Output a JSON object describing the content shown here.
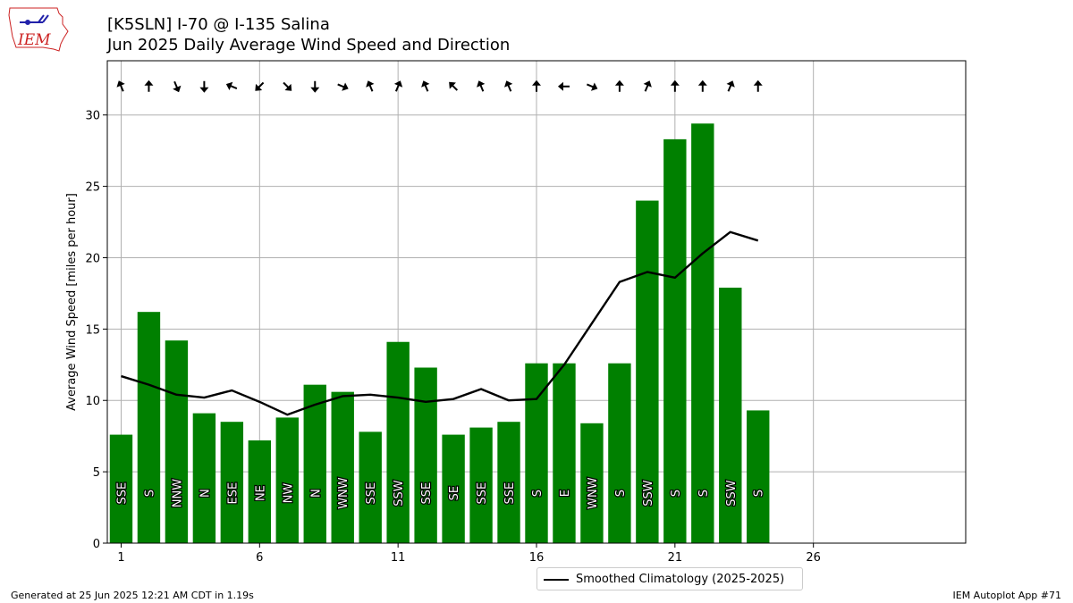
{
  "header": {
    "title": "[K5SLN] I-70 @ I-135 Salina",
    "subtitle": "Jun 2025 Daily Average Wind Speed and Direction"
  },
  "logo": {
    "text": "IEM"
  },
  "footer": {
    "left": "Generated at 25 Jun 2025 12:21 AM CDT in 1.19s",
    "right": "IEM Autoplot App #71"
  },
  "legend": {
    "label": "Smoothed Climatology (2025-2025)",
    "placement": "lower-center, below axes"
  },
  "colors": {
    "bar": "#008000",
    "climatology": "#000000",
    "grid": "#b0b0b0",
    "logo_red": "#cc2222",
    "logo_blue": "#2222aa"
  },
  "chart_data": {
    "type": "bar",
    "ylabel": "Average Wind Speed [miles per hour]",
    "xlabel": "",
    "xlim": [
      0.5,
      31.5
    ],
    "ylim": [
      0,
      33.8
    ],
    "xticks": [
      1,
      6,
      11,
      16,
      21,
      26
    ],
    "yticks": [
      0,
      5,
      10,
      15,
      20,
      25,
      30
    ],
    "grid": true,
    "days": [
      1,
      2,
      3,
      4,
      5,
      6,
      7,
      8,
      9,
      10,
      11,
      12,
      13,
      14,
      15,
      16,
      17,
      18,
      19,
      20,
      21,
      22,
      23,
      24
    ],
    "speeds": [
      7.6,
      16.2,
      14.2,
      9.1,
      8.5,
      7.2,
      8.8,
      11.1,
      10.6,
      7.8,
      14.1,
      12.3,
      7.6,
      8.1,
      8.5,
      12.6,
      12.6,
      8.4,
      12.6,
      24.0,
      28.3,
      29.4,
      17.9,
      9.3
    ],
    "directions": [
      "SSE",
      "S",
      "NNW",
      "N",
      "ESE",
      "NE",
      "NW",
      "N",
      "WNW",
      "SSE",
      "SSW",
      "SSE",
      "SE",
      "SSE",
      "SSE",
      "S",
      "E",
      "WNW",
      "S",
      "SSW",
      "S",
      "S",
      "SSW",
      "S"
    ],
    "climatology": [
      11.7,
      11.1,
      10.4,
      10.2,
      10.7,
      9.9,
      9.0,
      9.7,
      10.3,
      10.4,
      10.2,
      9.9,
      10.1,
      10.8,
      10.0,
      10.1,
      12.5,
      15.4,
      18.3,
      19.0,
      18.6,
      20.3,
      21.8,
      21.2
    ],
    "series": [
      {
        "name": "Smoothed Climatology (2025-2025)"
      }
    ]
  }
}
